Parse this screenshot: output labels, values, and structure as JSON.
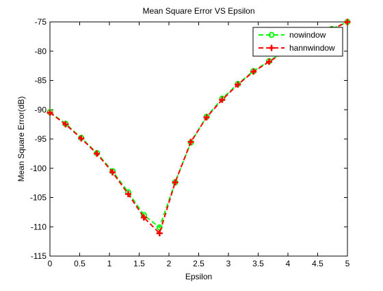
{
  "chart_data": {
    "type": "line",
    "title": "Mean Square Error VS Epsilon",
    "xlabel": "Epsilon",
    "ylabel": "Mean Square Error(dB)",
    "xlim": [
      0,
      5
    ],
    "ylim": [
      -115,
      -75
    ],
    "xticks": [
      0,
      0.5,
      1,
      1.5,
      2,
      2.5,
      3,
      3.5,
      4,
      4.5,
      5
    ],
    "xtick_labels": [
      "0",
      "0.5",
      "1",
      "1.5",
      "2",
      "2.5",
      "3",
      "3.5",
      "4",
      "4.5",
      "5"
    ],
    "yticks": [
      -115,
      -110,
      -105,
      -100,
      -95,
      -90,
      -85,
      -80,
      -75
    ],
    "ytick_labels": [
      "-115",
      "-110",
      "-105",
      "-100",
      "-95",
      "-90",
      "-85",
      "-80",
      "-75"
    ],
    "grid": false,
    "legend_position": "top-right",
    "series": [
      {
        "name": "nowindow",
        "color": "#00ff00",
        "marker": "circle",
        "linestyle": "dashed",
        "x": [
          0,
          0.263,
          0.526,
          0.789,
          1.053,
          1.316,
          1.579,
          1.842,
          2.105,
          2.368,
          2.632,
          2.895,
          3.158,
          3.421,
          3.684,
          3.947,
          4.211,
          4.474,
          4.737,
          5.0
        ],
        "y": [
          -90.4,
          -92.4,
          -94.8,
          -97.4,
          -100.5,
          -104.1,
          -108.0,
          -110.1,
          -102.4,
          -95.6,
          -91.2,
          -88.1,
          -85.6,
          -83.4,
          -81.7,
          -80.0,
          -78.8,
          -77.5,
          -76.2,
          -75.0
        ]
      },
      {
        "name": "hannwindow",
        "color": "#ff0000",
        "marker": "plus",
        "linestyle": "dashed",
        "x": [
          0,
          0.263,
          0.526,
          0.789,
          1.053,
          1.316,
          1.579,
          1.842,
          2.105,
          2.368,
          2.632,
          2.895,
          3.158,
          3.421,
          3.684,
          3.947,
          4.211,
          4.474,
          4.737,
          5.0
        ],
        "y": [
          -90.5,
          -92.5,
          -94.9,
          -97.5,
          -100.7,
          -104.4,
          -108.4,
          -111.1,
          -102.4,
          -95.5,
          -91.3,
          -88.3,
          -85.7,
          -83.5,
          -81.8,
          -80.1,
          -78.9,
          -77.6,
          -76.3,
          -75.0
        ]
      }
    ]
  }
}
